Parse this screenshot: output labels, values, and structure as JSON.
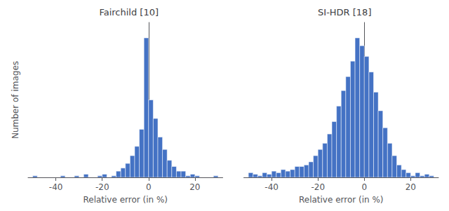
{
  "chart_data": [
    {
      "type": "histogram",
      "title": "Fairchild [10]",
      "xlabel": "Relative error (in %)",
      "ylabel": "Number of images",
      "bins": [
        -50,
        -48,
        -46,
        -44,
        -42,
        -40,
        -38,
        -36,
        -34,
        -32,
        -30,
        -28,
        -26,
        -24,
        -22,
        -20,
        -18,
        -16,
        -14,
        -12,
        -10,
        -8,
        -6,
        -4,
        -2,
        0,
        2,
        4,
        6,
        8,
        10,
        12,
        14,
        16,
        18,
        20,
        22,
        24,
        26,
        28,
        30
      ],
      "values": [
        1,
        0,
        0,
        0,
        0,
        0,
        1,
        0,
        0,
        1,
        0,
        2,
        0,
        0,
        1,
        2,
        0,
        1,
        4,
        6,
        9,
        14,
        20,
        31,
        90,
        50,
        38,
        26,
        18,
        11,
        7,
        4,
        4,
        1,
        2,
        1,
        0,
        0,
        0,
        1
      ],
      "color": "#4472c4",
      "xlim": [
        -52,
        32
      ],
      "xticks": [
        -40,
        -20,
        0,
        20
      ],
      "ylim": [
        0,
        100
      ],
      "grid": false,
      "tick_labels": "x"
    },
    {
      "type": "histogram",
      "title": "SI-HDR [18]",
      "xlabel": "Relative error (in %)",
      "bins": [
        -50,
        -48,
        -46,
        -44,
        -42,
        -40,
        -38,
        -36,
        -34,
        -32,
        -30,
        -28,
        -26,
        -24,
        -22,
        -20,
        -18,
        -16,
        -14,
        -12,
        -10,
        -8,
        -6,
        -4,
        -2,
        0,
        2,
        4,
        6,
        8,
        10,
        12,
        14,
        16,
        18,
        20,
        22,
        24,
        26,
        28,
        30
      ],
      "values": [
        3,
        2,
        1,
        3,
        2,
        4,
        3,
        5,
        4,
        5,
        7,
        7,
        8,
        10,
        14,
        18,
        22,
        28,
        36,
        46,
        56,
        65,
        75,
        90,
        85,
        78,
        68,
        55,
        43,
        32,
        22,
        14,
        8,
        5,
        3,
        1,
        3,
        1,
        2,
        1
      ],
      "color": "#4472c4",
      "xlim": [
        -52,
        32
      ],
      "xticks": [
        -40,
        -20,
        0,
        20
      ],
      "ylim": [
        0,
        100
      ],
      "grid": false,
      "tick_labels": "x"
    }
  ]
}
